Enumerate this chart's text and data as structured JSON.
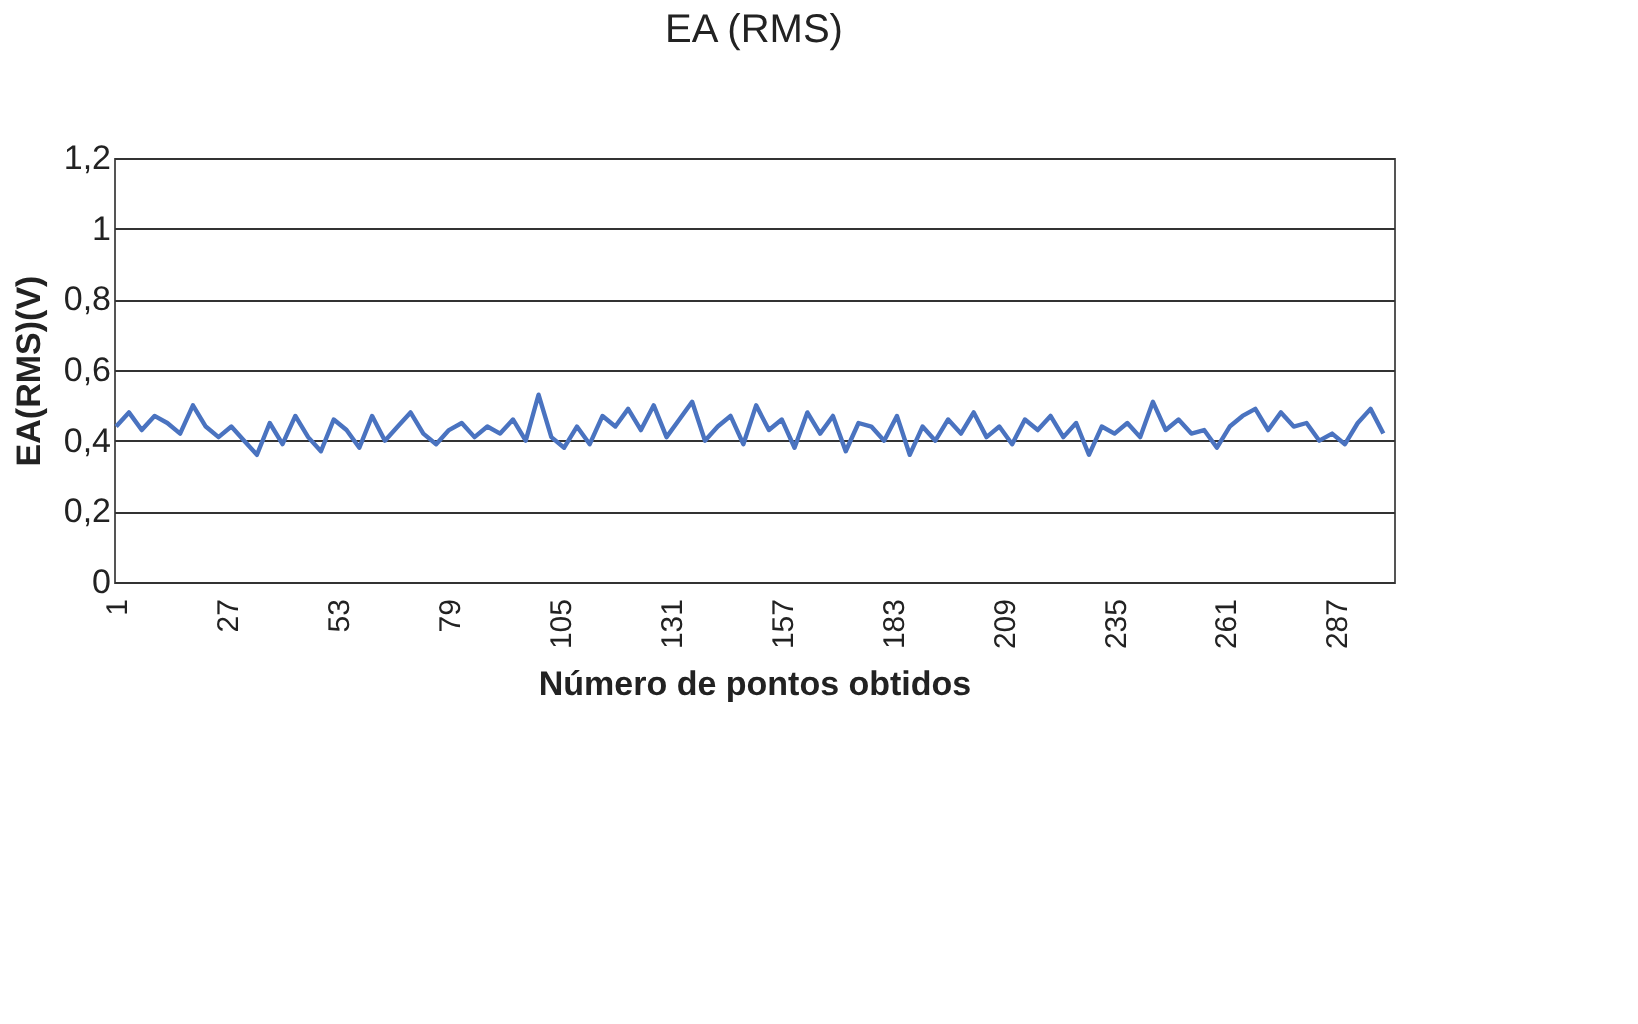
{
  "chart_data": {
    "type": "line",
    "title": "EA (RMS)",
    "xlabel": "Número de pontos obtidos",
    "ylabel": "EA(RMS)(V)",
    "x": [
      1,
      4,
      7,
      10,
      13,
      16,
      19,
      22,
      25,
      28,
      31,
      34,
      37,
      40,
      43,
      46,
      49,
      52,
      55,
      58,
      61,
      64,
      67,
      70,
      73,
      76,
      79,
      82,
      85,
      88,
      91,
      94,
      97,
      100,
      103,
      106,
      109,
      112,
      115,
      118,
      121,
      124,
      127,
      130,
      133,
      136,
      139,
      142,
      145,
      148,
      151,
      154,
      157,
      160,
      163,
      166,
      169,
      172,
      175,
      178,
      181,
      184,
      187,
      190,
      193,
      196,
      199,
      202,
      205,
      208,
      211,
      214,
      217,
      220,
      223,
      226,
      229,
      232,
      235,
      238,
      241,
      244,
      247,
      250,
      253,
      256,
      259,
      262,
      265,
      268,
      271,
      274,
      277,
      280,
      283,
      286,
      289,
      292,
      295,
      298
    ],
    "series": [
      {
        "color": "#4a73c0",
        "values": [
          0.44,
          0.48,
          0.43,
          0.47,
          0.45,
          0.42,
          0.5,
          0.44,
          0.41,
          0.44,
          0.4,
          0.36,
          0.45,
          0.39,
          0.47,
          0.41,
          0.37,
          0.46,
          0.43,
          0.38,
          0.47,
          0.4,
          0.44,
          0.48,
          0.42,
          0.39,
          0.43,
          0.45,
          0.41,
          0.44,
          0.42,
          0.46,
          0.4,
          0.53,
          0.41,
          0.38,
          0.44,
          0.39,
          0.47,
          0.44,
          0.49,
          0.43,
          0.5,
          0.41,
          0.46,
          0.51,
          0.4,
          0.44,
          0.47,
          0.39,
          0.5,
          0.43,
          0.46,
          0.38,
          0.48,
          0.42,
          0.47,
          0.37,
          0.45,
          0.44,
          0.4,
          0.47,
          0.36,
          0.44,
          0.4,
          0.46,
          0.42,
          0.48,
          0.41,
          0.44,
          0.39,
          0.46,
          0.43,
          0.47,
          0.41,
          0.45,
          0.36,
          0.44,
          0.42,
          0.45,
          0.41,
          0.51,
          0.43,
          0.46,
          0.42,
          0.43,
          0.38,
          0.44,
          0.47,
          0.49,
          0.43,
          0.48,
          0.44,
          0.45,
          0.4,
          0.42,
          0.39,
          0.45,
          0.49,
          0.42
        ]
      }
    ],
    "xlim": [
      0.5,
      300.5
    ],
    "xticks": [
      1,
      27,
      53,
      79,
      105,
      131,
      157,
      183,
      209,
      235,
      261,
      287
    ],
    "ylim": [
      0,
      1.2
    ],
    "yticks": [
      {
        "value": 0,
        "label": "0"
      },
      {
        "value": 0.2,
        "label": "0,2"
      },
      {
        "value": 0.4,
        "label": "0,4"
      },
      {
        "value": 0.6,
        "label": "0,6"
      },
      {
        "value": 0.8,
        "label": "0,8"
      },
      {
        "value": 1,
        "label": "1"
      },
      {
        "value": 1.2,
        "label": "1,2"
      }
    ],
    "grid": "y",
    "legend": false,
    "marker": "none",
    "line_style": "solid"
  }
}
